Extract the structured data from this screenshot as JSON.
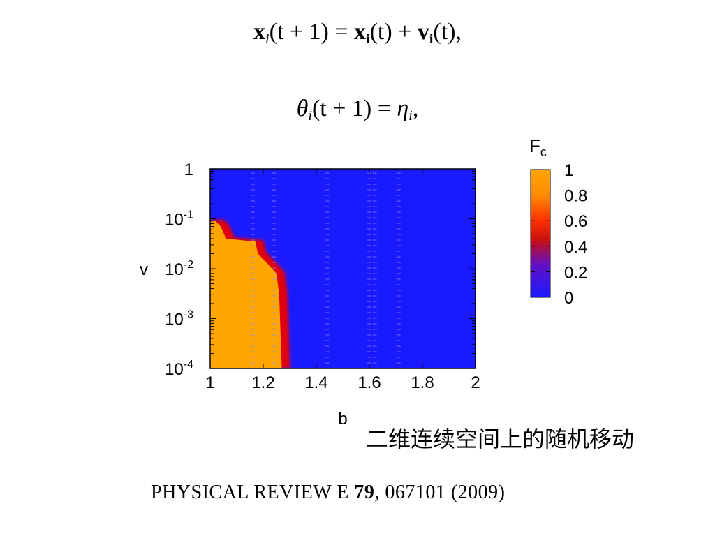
{
  "equations": {
    "eq1": {
      "x": "x",
      "i_it": "i",
      "t_plus_1": "(t + 1) = ",
      "x2": "x",
      "i_bold": "i",
      "t_mid": "(t) + ",
      "v": "v",
      "i_bold2": "i",
      "t_end": "(t),"
    },
    "eq2": {
      "theta": "θ",
      "i_it": "i",
      "t_plus_1": "(t + 1) = ",
      "eta": "η",
      "i_it2": "i",
      "end": ","
    }
  },
  "chart_data": {
    "type": "heatmap",
    "xlabel": "b",
    "ylabel": "v",
    "x_ticks": [
      "1",
      "1.2",
      "1.4",
      "1.6",
      "1.8",
      "2"
    ],
    "x_range": [
      1,
      2
    ],
    "y_scale": "log",
    "y_range": [
      0.0001,
      1
    ],
    "y_ticks": [
      {
        "value": 1,
        "base": "1",
        "exp": ""
      },
      {
        "value": 0.1,
        "base": "10",
        "exp": "-1"
      },
      {
        "value": 0.01,
        "base": "10",
        "exp": "-2"
      },
      {
        "value": 0.001,
        "base": "10",
        "exp": "-3"
      },
      {
        "value": 0.0001,
        "base": "10",
        "exp": "-4"
      }
    ],
    "colorbar": {
      "label": "F",
      "label_sub": "c",
      "ticks": [
        "1",
        "0.8",
        "0.6",
        "0.4",
        "0.2",
        "0"
      ],
      "range": [
        0,
        1
      ],
      "colors": [
        "#1a1aff",
        "#6010c8",
        "#c81010",
        "#ff3000",
        "#ff8c00",
        "#ffa500"
      ]
    },
    "boundary": [
      {
        "v": 0.09,
        "b": 1.02
      },
      {
        "v": 0.07,
        "b": 1.04
      },
      {
        "v": 0.04,
        "b": 1.06
      },
      {
        "v": 0.035,
        "b": 1.17
      },
      {
        "v": 0.02,
        "b": 1.18
      },
      {
        "v": 0.012,
        "b": 1.22
      },
      {
        "v": 0.008,
        "b": 1.25
      },
      {
        "v": 0.003,
        "b": 1.26
      },
      {
        "v": 0.0001,
        "b": 1.27
      }
    ]
  },
  "caption_cn": "二维连续空间上的随机移动",
  "citation": {
    "prefix": "PHYSICAL REVIEW E ",
    "volume": "79",
    "rest": ", 067101 (2009)"
  }
}
